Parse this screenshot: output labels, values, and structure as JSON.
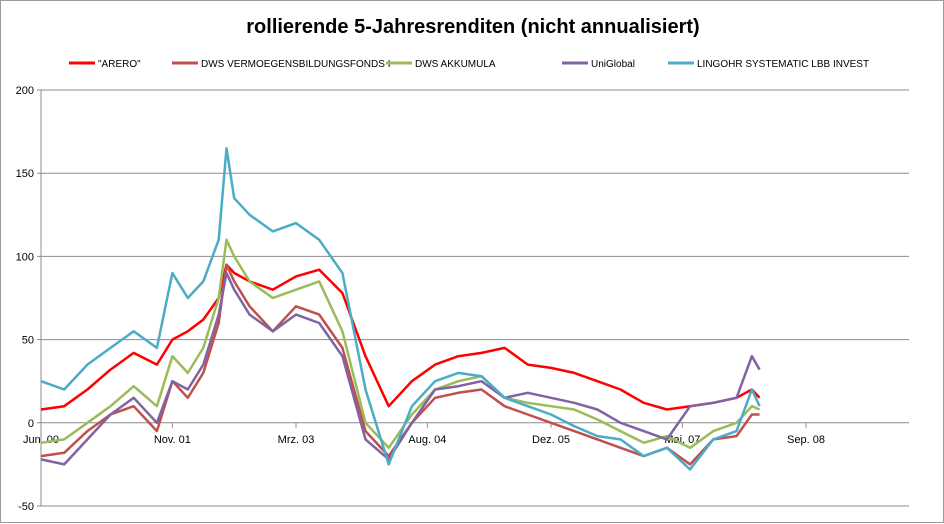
{
  "chart_data": {
    "type": "line",
    "title": "rollierende 5-Jahresrenditen (nicht annualisiert)",
    "xlabel": "",
    "ylabel": "",
    "ylim": [
      -50,
      200
    ],
    "yticks": [
      -50,
      0,
      50,
      100,
      150,
      200
    ],
    "x_tick_labels": [
      "Jun. 00",
      "Nov. 01",
      "Mrz. 03",
      "Aug. 04",
      "Dez. 05",
      "Mai. 07",
      "Sep. 08"
    ],
    "x_tick_dates": [
      "2000-06",
      "2001-11",
      "2003-03",
      "2004-08",
      "2005-12",
      "2007-05",
      "2008-09"
    ],
    "x": [
      "2000-06",
      "2000-09",
      "2000-12",
      "2001-03",
      "2001-06",
      "2001-09",
      "2001-11",
      "2002-01",
      "2002-03",
      "2002-05",
      "2002-06",
      "2002-07",
      "2002-09",
      "2002-12",
      "2003-03",
      "2003-06",
      "2003-09",
      "2003-12",
      "2004-03",
      "2004-06",
      "2004-09",
      "2004-12",
      "2005-03",
      "2005-06",
      "2005-09",
      "2005-12",
      "2006-03",
      "2006-06",
      "2006-09",
      "2006-12",
      "2007-03",
      "2007-06",
      "2007-09",
      "2007-12",
      "2008-02",
      "2008-03"
    ],
    "grid": "horizontal",
    "legend_position": "top",
    "series": [
      {
        "name": "\"ARERO\"",
        "color": "#ff0000",
        "values": [
          8,
          10,
          20,
          32,
          42,
          35,
          50,
          55,
          62,
          75,
          95,
          90,
          85,
          80,
          88,
          92,
          78,
          40,
          10,
          25,
          35,
          40,
          42,
          45,
          35,
          33,
          30,
          25,
          20,
          12,
          8,
          10,
          12,
          15,
          20,
          15
        ]
      },
      {
        "name": "DWS VERMOEGENSBILDUNGSFONDS  I",
        "color": "#c0504d",
        "values": [
          -20,
          -18,
          -5,
          5,
          10,
          -5,
          25,
          15,
          30,
          60,
          95,
          85,
          70,
          55,
          70,
          65,
          45,
          -5,
          -20,
          0,
          15,
          18,
          20,
          10,
          5,
          0,
          -5,
          -10,
          -15,
          -20,
          -15,
          -25,
          -10,
          -8,
          5,
          5
        ]
      },
      {
        "name": "DWS AKKUMULA",
        "color": "#9bbb59",
        "values": [
          -12,
          -10,
          0,
          10,
          22,
          10,
          40,
          30,
          45,
          75,
          110,
          100,
          85,
          75,
          80,
          85,
          55,
          0,
          -15,
          5,
          20,
          25,
          28,
          15,
          12,
          10,
          8,
          2,
          -5,
          -12,
          -8,
          -15,
          -5,
          0,
          10,
          8
        ]
      },
      {
        "name": "UniGlobal",
        "color": "#8064a2",
        "values": [
          -22,
          -25,
          -10,
          5,
          15,
          0,
          25,
          20,
          35,
          65,
          90,
          80,
          65,
          55,
          65,
          60,
          40,
          -10,
          -22,
          0,
          20,
          22,
          25,
          15,
          18,
          15,
          12,
          8,
          0,
          -5,
          -10,
          10,
          12,
          15,
          40,
          32
        ]
      },
      {
        "name": "LINGOHR SYSTEMATIC  LBB INVEST",
        "color": "#4bacc6",
        "values": [
          25,
          20,
          35,
          45,
          55,
          45,
          90,
          75,
          85,
          110,
          165,
          135,
          125,
          115,
          120,
          110,
          90,
          20,
          -25,
          10,
          25,
          30,
          28,
          15,
          10,
          5,
          -2,
          -8,
          -10,
          -20,
          -15,
          -28,
          -10,
          -5,
          20,
          10
        ]
      }
    ]
  }
}
